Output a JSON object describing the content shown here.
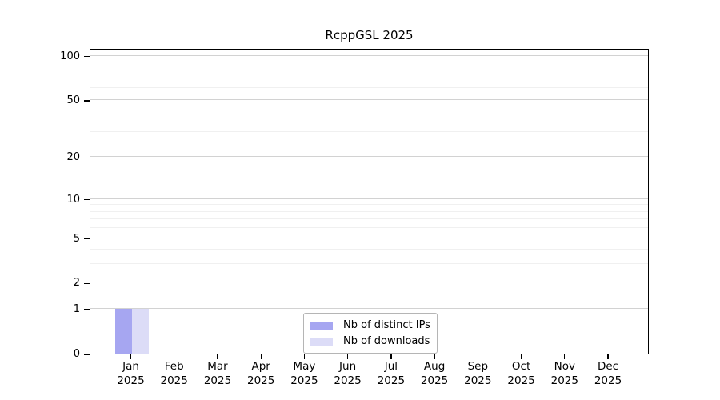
{
  "chart_data": {
    "type": "bar",
    "title": "RcppGSL 2025",
    "months": [
      "Jan",
      "Feb",
      "Mar",
      "Apr",
      "May",
      "Jun",
      "Jul",
      "Aug",
      "Sep",
      "Oct",
      "Nov",
      "Dec"
    ],
    "year": "2025",
    "y_axis": {
      "scale": "log1p",
      "max_value": 113,
      "major_ticks": [
        0,
        1,
        2,
        5,
        10,
        20,
        50,
        100
      ],
      "minor_gridlines": [
        3,
        4,
        6,
        7,
        8,
        9,
        30,
        40,
        60,
        70,
        80,
        90
      ]
    },
    "series": [
      {
        "name": "Nb of distinct IPs",
        "color": "#a6a6f1",
        "values": [
          1,
          0,
          0,
          0,
          0,
          0,
          0,
          0,
          0,
          0,
          0,
          0
        ]
      },
      {
        "name": "Nb of downloads",
        "color": "#dcdcf7",
        "values": [
          1,
          0,
          0,
          0,
          0,
          0,
          0,
          0,
          0,
          0,
          0,
          0
        ]
      }
    ],
    "legend_position": "bottom-center",
    "grid": "on"
  },
  "colors": {
    "grid_major": "#d2d2d2",
    "grid_minor": "#f0f0f0",
    "axis": "#000000",
    "legend_border": "#b5b5b5",
    "background": "#ffffff"
  }
}
